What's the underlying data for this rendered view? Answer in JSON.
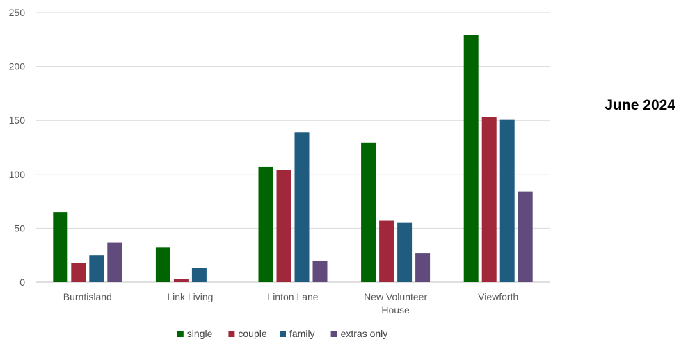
{
  "side_title": "June 2024",
  "chart_data": {
    "type": "bar",
    "categories": [
      "Burntisland",
      "Link Living",
      "Linton Lane",
      "New Volunteer House",
      "Viewforth"
    ],
    "category_lines": [
      [
        "Burntisland"
      ],
      [
        "Link Living"
      ],
      [
        "Linton Lane"
      ],
      [
        "New Volunteer",
        "House"
      ],
      [
        "Viewforth"
      ]
    ],
    "series": [
      {
        "name": "single",
        "color": "#006400",
        "values": [
          65,
          32,
          107,
          129,
          229
        ]
      },
      {
        "name": "couple",
        "color": "#A0283A",
        "values": [
          18,
          3,
          104,
          57,
          153
        ]
      },
      {
        "name": "family",
        "color": "#1F5C80",
        "values": [
          25,
          13,
          139,
          55,
          151
        ]
      },
      {
        "name": "extras only",
        "color": "#614A7C",
        "values": [
          37,
          0,
          20,
          27,
          84
        ]
      }
    ],
    "yticks": [
      "0",
      "50",
      "100",
      "150",
      "200",
      "250"
    ],
    "ylim": [
      0,
      250
    ],
    "grid": true,
    "legend_position": "bottom"
  }
}
